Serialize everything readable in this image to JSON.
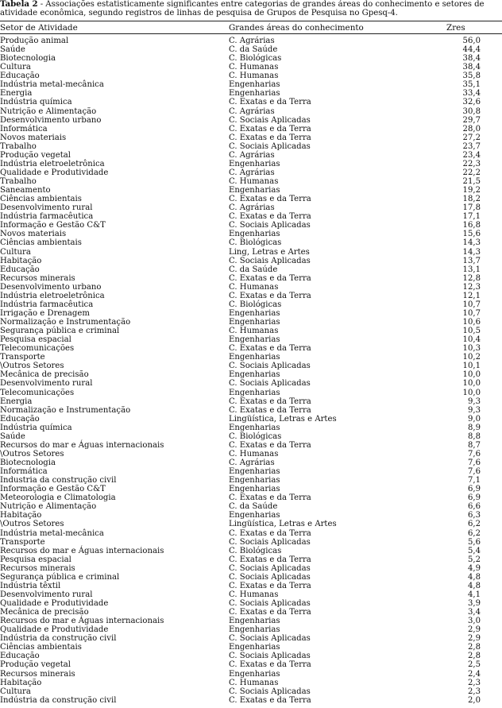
{
  "caption": {
    "label": "Tabela 2",
    "text": " - Associações estatisticamente significantes entre categorias de grandes áreas do conhecimento e setores de atividade econômica, segundo registros de linhas de pesquisa de Grupos de Pesquisa no Gpesq-4."
  },
  "table": {
    "headers": [
      "Setor de Atividade",
      "Grandes áreas do conhecimento",
      "Zres"
    ],
    "rows": [
      [
        "Produção animal",
        "C. Agrárias",
        "56,0"
      ],
      [
        "Saúde",
        "C. da Saúde",
        "44,4"
      ],
      [
        "Biotecnologia",
        "C. Biológicas",
        "38,4"
      ],
      [
        "Cultura",
        "C. Humanas",
        "38,4"
      ],
      [
        "Educação",
        "C. Humanas",
        "35,8"
      ],
      [
        "Indústria metal-mecânica",
        "Engenharias",
        "35,1"
      ],
      [
        "Energia",
        "Engenharias",
        "33,4"
      ],
      [
        "Indústria química",
        "C. Exatas e da Terra",
        "32,6"
      ],
      [
        "Nutrição e Alimentação",
        "C. Agrárias",
        "30,8"
      ],
      [
        "Desenvolvimento urbano",
        "C. Sociais Aplicadas",
        "29,7"
      ],
      [
        "Informática",
        "C. Exatas e da Terra",
        "28,0"
      ],
      [
        "Novos materiais",
        "C. Exatas e da Terra",
        "27,2"
      ],
      [
        "Trabalho",
        "C. Sociais Aplicadas",
        "23,7"
      ],
      [
        "Produção vegetal",
        "C. Agrárias",
        "23,4"
      ],
      [
        "Indústria eletroeletrônica",
        "Engenharias",
        "22,3"
      ],
      [
        "Qualidade e Produtividade",
        "C. Agrárias",
        "22,2"
      ],
      [
        "Trabalho",
        "C. Humanas",
        "21,5"
      ],
      [
        "Saneamento",
        "Engenharias",
        "19,2"
      ],
      [
        "Ciências ambientais",
        "C. Exatas e da Terra",
        "18,2"
      ],
      [
        "Desenvolvimento rural",
        "C. Agrárias",
        "17,8"
      ],
      [
        "Indústria farmacêutica",
        "C. Exatas e da Terra",
        "17,1"
      ],
      [
        "Informação e Gestão C&T",
        "C. Sociais Aplicadas",
        "16,8"
      ],
      [
        "Novos materiais",
        "Engenharias",
        "15,6"
      ],
      [
        "Ciências ambientais",
        "C. Biológicas",
        "14,3"
      ],
      [
        "Cultura",
        "Ling, Letras e Artes",
        "14,3"
      ],
      [
        "Habitação",
        "C. Sociais Aplicadas",
        "13,7"
      ],
      [
        "Educação",
        "C. da Saúde",
        "13,1"
      ],
      [
        "Recursos minerais",
        "C. Exatas e da Terra",
        "12,8"
      ],
      [
        "Desenvolvimento urbano",
        "C. Humanas",
        "12,3"
      ],
      [
        "Indústria eletroeletrônica",
        "C. Exatas e da Terra",
        "12,1"
      ],
      [
        "Indústria farmacêutica",
        "C. Biológicas",
        "10,7"
      ],
      [
        "Irrigação e Drenagem",
        "Engenharias",
        "10,7"
      ],
      [
        "Normalização e Instrumentação",
        "Engenharias",
        "10,6"
      ],
      [
        "Segurança pública e criminal",
        "C. Humanas",
        "10,5"
      ],
      [
        "Pesquisa espacial",
        "Engenharias",
        "10,4"
      ],
      [
        "Telecomunicações",
        "C. Exatas e da Terra",
        "10,3"
      ],
      [
        "Transporte",
        "Engenharias",
        "10,2"
      ],
      [
        "\\Outros Setores",
        "C. Sociais Aplicadas",
        "10,1"
      ],
      [
        "Mecânica de precisão",
        "Engenharias",
        "10,0"
      ],
      [
        "Desenvolvimento rural",
        "C. Sociais Aplicadas",
        "10,0"
      ],
      [
        "Telecomunicações",
        "Engenharias",
        "10,0"
      ],
      [
        "Energia",
        "C. Exatas e da Terra",
        "9,3"
      ],
      [
        "Normalização e Instrumentação",
        "C. Exatas e da Terra",
        "9,3"
      ],
      [
        "Educação",
        "Lingüística, Letras e Artes",
        "9,0"
      ],
      [
        "Indústria química",
        "Engenharias",
        "8,9"
      ],
      [
        "Saúde",
        "C. Biológicas",
        "8,8"
      ],
      [
        "Recursos do mar e Águas internacionais",
        "C. Exatas e da Terra",
        "8,7"
      ],
      [
        "\\Outros Setores",
        "C. Humanas",
        "7,6"
      ],
      [
        "Biotecnologia",
        "C. Agrárias",
        "7,6"
      ],
      [
        "Informática",
        "Engenharias",
        "7,6"
      ],
      [
        "Industria da construção civil",
        "Engenharias",
        "7,1"
      ],
      [
        "Informação e Gestão C&T",
        "Engenharias",
        "6,9"
      ],
      [
        "Meteorologia e Climatologia",
        "C. Exatas e da Terra",
        "6,9"
      ],
      [
        "Nutrição e Alimentação",
        "C. da Saúde",
        "6,6"
      ],
      [
        "Habitação",
        "Engenharias",
        "6,3"
      ],
      [
        "\\Outros Setores",
        "Lingüística, Letras e Artes",
        "6,2"
      ],
      [
        "Indústria metal-mecânica",
        "C. Exatas e da Terra",
        "6,2"
      ],
      [
        "Transporte",
        "C. Sociais Aplicadas",
        "5,6"
      ],
      [
        "Recursos do mar e Águas internacionais",
        "C. Biológicas",
        "5,4"
      ],
      [
        "Pesquisa espacial",
        "C. Exatas e da Terra",
        "5,2"
      ],
      [
        "Recursos minerais",
        "C. Sociais Aplicadas",
        "4,9"
      ],
      [
        "Segurança pública e criminal",
        "C. Sociais Aplicadas",
        "4,8"
      ],
      [
        "Indústria têxtil",
        "C. Exatas e da Terra",
        "4,8"
      ],
      [
        "Desenvolvimento rural",
        "C. Humanas",
        "4,1"
      ],
      [
        "Qualidade e Produtividade",
        "C. Sociais Aplicadas",
        "3,9"
      ],
      [
        "Mecânica de precisão",
        "C. Exatas e da Terra",
        "3,4"
      ],
      [
        "Recursos do mar e Águas internacionais",
        "Engenharias",
        "3,0"
      ],
      [
        "Qualidade e Produtividade",
        "Engenharias",
        "2,9"
      ],
      [
        "Indústria da construção civil",
        "C. Sociais Aplicadas",
        "2,9"
      ],
      [
        "Ciências ambientais",
        "Engenharias",
        "2,8"
      ],
      [
        "Educação",
        "C. Sociais Aplicadas",
        "2,8"
      ],
      [
        "Produção vegetal",
        "C. Exatas e da Terra",
        "2,5"
      ],
      [
        "Recursos minerais",
        "Engenharias",
        "2,4"
      ],
      [
        "Habitação",
        "C. Humanas",
        "2,3"
      ],
      [
        "Cultura",
        "C. Sociais Aplicadas",
        "2,3"
      ],
      [
        "Indústria da construção civil",
        "C. Exatas e da Terra",
        "2,0"
      ]
    ]
  }
}
